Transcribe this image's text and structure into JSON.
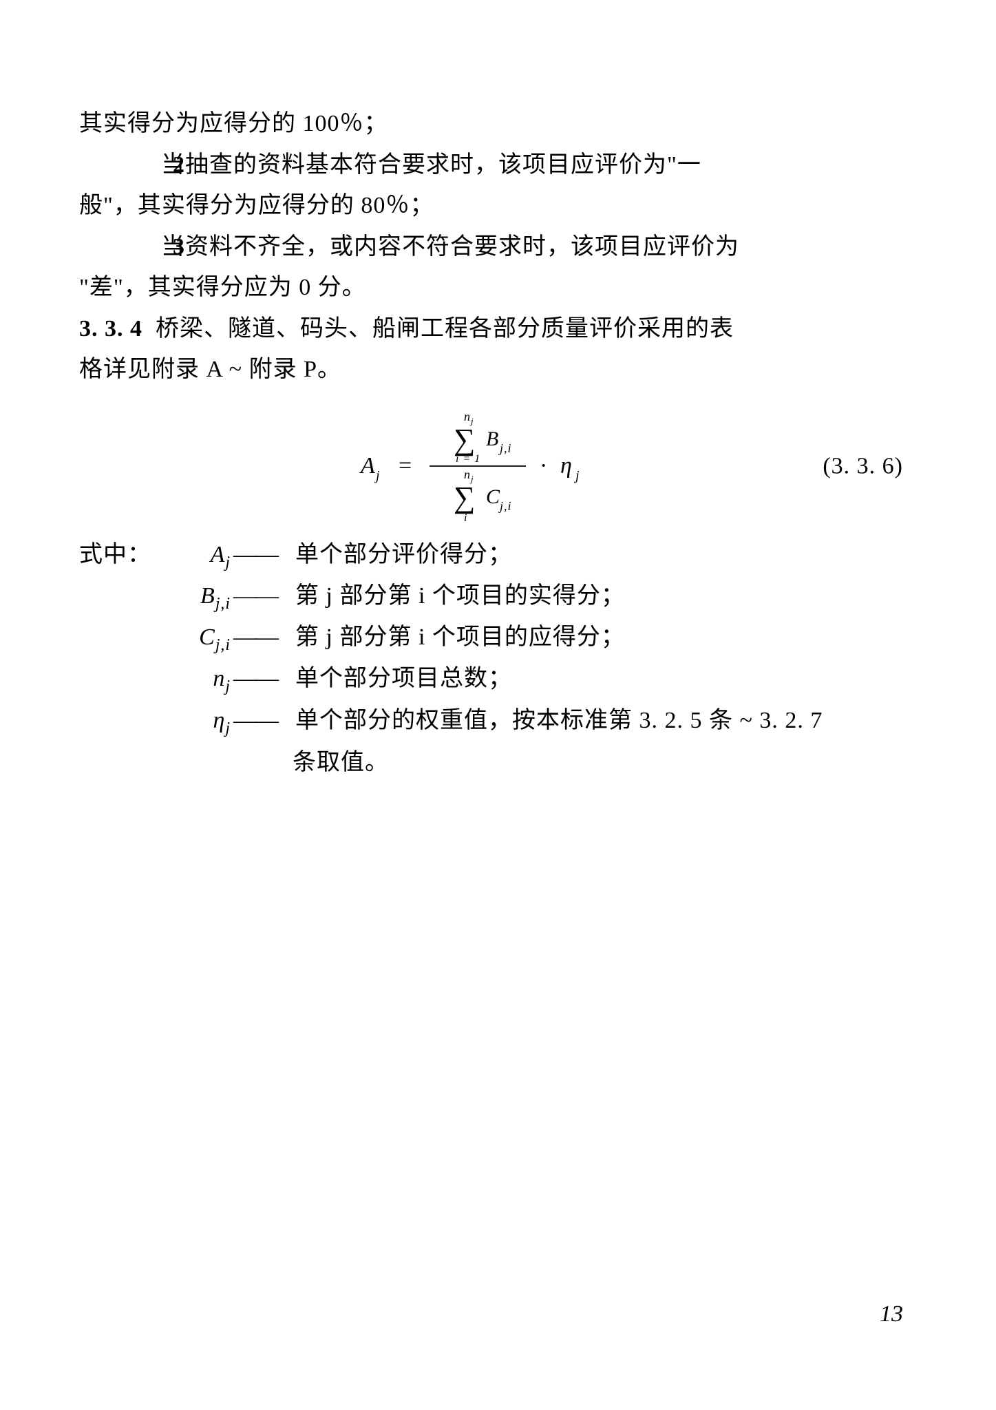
{
  "colors": {
    "text": "#000000",
    "background": "#ffffff"
  },
  "typography": {
    "body_font": "SimSun/Songti",
    "math_font": "Times New Roman italic",
    "base_size_pt": 12,
    "line_height": 1.75
  },
  "p0": "其实得分为应得分的 100％；",
  "item2_num": "2",
  "item2_line1": "当抽查的资料基本符合要求时，该项目应评价为\"一",
  "item2_line2": "般\"，其实得分为应得分的 80％；",
  "item3_num": "3",
  "item3_line1": "当资料不齐全，或内容不符合要求时，该项目应评价为",
  "item3_line2": "\"差\"，其实得分应为 0 分。",
  "sec_num": "3. 3. 4",
  "sec_line1": "桥梁、隧道、码头、船闸工程各部分质量评价采用的表",
  "sec_line2": "格详见附录 A ~ 附录 P。",
  "equation": {
    "label": "(3. 3. 6)",
    "lhs_base": "A",
    "lhs_sub": "j",
    "num_sym_base": "B",
    "num_sym_sub": "j,i",
    "den_sym_base": "C",
    "den_sym_sub": "j,i",
    "num_upper_base": "n",
    "num_upper_sub": "j",
    "num_lower": "i = 1",
    "den_upper_base": "n",
    "den_upper_sub": "j",
    "den_lower": "i",
    "tail_base": "η",
    "tail_sub": "j",
    "sigma_glyph": "∑",
    "dot": "·"
  },
  "legend_prefix": "式中：",
  "legend_dash": "——",
  "legend": [
    {
      "sym_html": "A<sub>j</sub>",
      "desc": "单个部分评价得分；"
    },
    {
      "sym_html": "B<sub>j,i</sub>",
      "desc": "第 j 部分第 i 个项目的实得分；"
    },
    {
      "sym_html": "C<sub>j,i</sub>",
      "desc": "第 j 部分第 i 个项目的应得分；"
    },
    {
      "sym_html": "n<sub>j</sub>",
      "desc": "单个部分项目总数；"
    },
    {
      "sym_html": "η<sub>j</sub>",
      "desc": "单个部分的权重值，按本标准第 3. 2. 5 条 ~ 3. 2. 7",
      "cont": "条取值。"
    }
  ],
  "page_number": "13"
}
